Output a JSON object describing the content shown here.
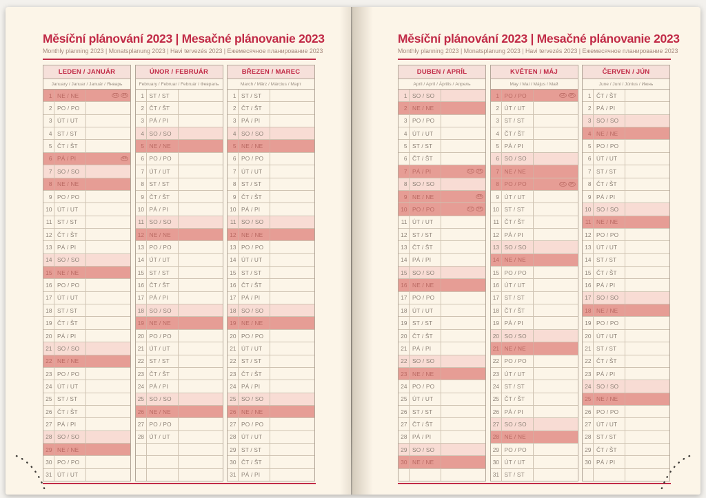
{
  "title": "Měsíční plánování 2023 | Mesačné plánovanie 2023",
  "subtitle": "Monthly planning 2023 | Monatsplanung 2023 | Havi tervezés 2023 | Ежемесячное планирование 2023",
  "colors": {
    "accent_red": "#c12b47",
    "page_cream": "#fcf5e8",
    "sunday_holiday_row": "#e69d95",
    "saturday_row": "#f8dcd4",
    "header_pink": "#f6e0da",
    "text_brown": "#8e8378"
  },
  "badge_labels": {
    "CZ": "CZ",
    "SK": "SK"
  },
  "row_fields": [
    "date",
    "day_abbrev_cs_sk",
    "highlight",
    "holiday_badges"
  ],
  "months": [
    {
      "page": 0,
      "name": "LEDEN / JANUÁR",
      "languages": "January / Januar / Január / Январь",
      "rows": [
        [
          "1",
          "NE / NE",
          "sun",
          "CZ,SK"
        ],
        [
          "2",
          "PO / PO",
          "",
          ""
        ],
        [
          "3",
          "ÚT / UT",
          "",
          ""
        ],
        [
          "4",
          "ST / ST",
          "",
          ""
        ],
        [
          "5",
          "ČT / ŠT",
          "",
          ""
        ],
        [
          "6",
          "PÁ / PI",
          "sun",
          "SK"
        ],
        [
          "7",
          "SO / SO",
          "sat",
          ""
        ],
        [
          "8",
          "NE / NE",
          "sun",
          ""
        ],
        [
          "9",
          "PO / PO",
          "",
          ""
        ],
        [
          "10",
          "ÚT / UT",
          "",
          ""
        ],
        [
          "11",
          "ST / ST",
          "",
          ""
        ],
        [
          "12",
          "ČT / ŠT",
          "",
          ""
        ],
        [
          "13",
          "PÁ / PI",
          "",
          ""
        ],
        [
          "14",
          "SO / SO",
          "sat",
          ""
        ],
        [
          "15",
          "NE / NE",
          "sun",
          ""
        ],
        [
          "16",
          "PO / PO",
          "",
          ""
        ],
        [
          "17",
          "ÚT / UT",
          "",
          ""
        ],
        [
          "18",
          "ST / ST",
          "",
          ""
        ],
        [
          "19",
          "ČT / ŠT",
          "",
          ""
        ],
        [
          "20",
          "PÁ / PI",
          "",
          ""
        ],
        [
          "21",
          "SO / SO",
          "sat",
          ""
        ],
        [
          "22",
          "NE / NE",
          "sun",
          ""
        ],
        [
          "23",
          "PO / PO",
          "",
          ""
        ],
        [
          "24",
          "ÚT / UT",
          "",
          ""
        ],
        [
          "25",
          "ST / ST",
          "",
          ""
        ],
        [
          "26",
          "ČT / ŠT",
          "",
          ""
        ],
        [
          "27",
          "PÁ / PI",
          "",
          ""
        ],
        [
          "28",
          "SO / SO",
          "sat",
          ""
        ],
        [
          "29",
          "NE / NE",
          "sun",
          ""
        ],
        [
          "30",
          "PO / PO",
          "",
          ""
        ],
        [
          "31",
          "ÚT / UT",
          "",
          ""
        ]
      ]
    },
    {
      "page": 0,
      "name": "ÚNOR / FEBRUÁR",
      "languages": "February / Februar / Február / Февраль",
      "rows": [
        [
          "1",
          "ST / ST",
          "",
          ""
        ],
        [
          "2",
          "ČT / ŠT",
          "",
          ""
        ],
        [
          "3",
          "PÁ / PI",
          "",
          ""
        ],
        [
          "4",
          "SO / SO",
          "sat",
          ""
        ],
        [
          "5",
          "NE / NE",
          "sun",
          ""
        ],
        [
          "6",
          "PO / PO",
          "",
          ""
        ],
        [
          "7",
          "ÚT / UT",
          "",
          ""
        ],
        [
          "8",
          "ST / ST",
          "",
          ""
        ],
        [
          "9",
          "ČT / ŠT",
          "",
          ""
        ],
        [
          "10",
          "PÁ / PI",
          "",
          ""
        ],
        [
          "11",
          "SO / SO",
          "sat",
          ""
        ],
        [
          "12",
          "NE / NE",
          "sun",
          ""
        ],
        [
          "13",
          "PO / PO",
          "",
          ""
        ],
        [
          "14",
          "ÚT / UT",
          "",
          ""
        ],
        [
          "15",
          "ST / ST",
          "",
          ""
        ],
        [
          "16",
          "ČT / ŠT",
          "",
          ""
        ],
        [
          "17",
          "PÁ / PI",
          "",
          ""
        ],
        [
          "18",
          "SO / SO",
          "sat",
          ""
        ],
        [
          "19",
          "NE / NE",
          "sun",
          ""
        ],
        [
          "20",
          "PO / PO",
          "",
          ""
        ],
        [
          "21",
          "ÚT / UT",
          "",
          ""
        ],
        [
          "22",
          "ST / ST",
          "",
          ""
        ],
        [
          "23",
          "ČT / ŠT",
          "",
          ""
        ],
        [
          "24",
          "PÁ / PI",
          "",
          ""
        ],
        [
          "25",
          "SO / SO",
          "sat",
          ""
        ],
        [
          "26",
          "NE / NE",
          "sun",
          ""
        ],
        [
          "27",
          "PO / PO",
          "",
          ""
        ],
        [
          "28",
          "ÚT / UT",
          "",
          ""
        ],
        [
          "",
          "",
          "",
          ""
        ],
        [
          "",
          "",
          "",
          ""
        ],
        [
          "",
          "",
          "",
          ""
        ]
      ]
    },
    {
      "page": 0,
      "name": "BŘEZEN / MAREC",
      "languages": "March / März / Március / Март",
      "rows": [
        [
          "1",
          "ST / ST",
          "",
          ""
        ],
        [
          "2",
          "ČT / ŠT",
          "",
          ""
        ],
        [
          "3",
          "PÁ / PI",
          "",
          ""
        ],
        [
          "4",
          "SO / SO",
          "sat",
          ""
        ],
        [
          "5",
          "NE / NE",
          "sun",
          ""
        ],
        [
          "6",
          "PO / PO",
          "",
          ""
        ],
        [
          "7",
          "ÚT / UT",
          "",
          ""
        ],
        [
          "8",
          "ST / ST",
          "",
          ""
        ],
        [
          "9",
          "ČT / ŠT",
          "",
          ""
        ],
        [
          "10",
          "PÁ / PI",
          "",
          ""
        ],
        [
          "11",
          "SO / SO",
          "sat",
          ""
        ],
        [
          "12",
          "NE / NE",
          "sun",
          ""
        ],
        [
          "13",
          "PO / PO",
          "",
          ""
        ],
        [
          "14",
          "ÚT / UT",
          "",
          ""
        ],
        [
          "15",
          "ST / ST",
          "",
          ""
        ],
        [
          "16",
          "ČT / ŠT",
          "",
          ""
        ],
        [
          "17",
          "PÁ / PI",
          "",
          ""
        ],
        [
          "18",
          "SO / SO",
          "sat",
          ""
        ],
        [
          "19",
          "NE / NE",
          "sun",
          ""
        ],
        [
          "20",
          "PO / PO",
          "",
          ""
        ],
        [
          "21",
          "ÚT / UT",
          "",
          ""
        ],
        [
          "22",
          "ST / ST",
          "",
          ""
        ],
        [
          "23",
          "ČT / ŠT",
          "",
          ""
        ],
        [
          "24",
          "PÁ / PI",
          "",
          ""
        ],
        [
          "25",
          "SO / SO",
          "sat",
          ""
        ],
        [
          "26",
          "NE / NE",
          "sun",
          ""
        ],
        [
          "27",
          "PO / PO",
          "",
          ""
        ],
        [
          "28",
          "ÚT / UT",
          "",
          ""
        ],
        [
          "29",
          "ST / ST",
          "",
          ""
        ],
        [
          "30",
          "ČT / ŠT",
          "",
          ""
        ],
        [
          "31",
          "PÁ / PI",
          "",
          ""
        ]
      ]
    },
    {
      "page": 1,
      "name": "DUBEN / APRÍL",
      "languages": "April / Apríl / Április / Апрель",
      "rows": [
        [
          "1",
          "SO / SO",
          "sat",
          ""
        ],
        [
          "2",
          "NE / NE",
          "sun",
          ""
        ],
        [
          "3",
          "PO / PO",
          "",
          ""
        ],
        [
          "4",
          "ÚT / UT",
          "",
          ""
        ],
        [
          "5",
          "ST / ST",
          "",
          ""
        ],
        [
          "6",
          "ČT / ŠT",
          "",
          ""
        ],
        [
          "7",
          "PÁ / PI",
          "sun",
          "CZ,SK"
        ],
        [
          "8",
          "SO / SO",
          "sat",
          ""
        ],
        [
          "9",
          "NE / NE",
          "sun",
          "SK"
        ],
        [
          "10",
          "PO / PO",
          "sun",
          "CZ,SK"
        ],
        [
          "11",
          "ÚT / UT",
          "",
          ""
        ],
        [
          "12",
          "ST / ST",
          "",
          ""
        ],
        [
          "13",
          "ČT / ŠT",
          "",
          ""
        ],
        [
          "14",
          "PÁ / PI",
          "",
          ""
        ],
        [
          "15",
          "SO / SO",
          "sat",
          ""
        ],
        [
          "16",
          "NE / NE",
          "sun",
          ""
        ],
        [
          "17",
          "PO / PO",
          "",
          ""
        ],
        [
          "18",
          "ÚT / UT",
          "",
          ""
        ],
        [
          "19",
          "ST / ST",
          "",
          ""
        ],
        [
          "20",
          "ČT / ŠT",
          "",
          ""
        ],
        [
          "21",
          "PÁ / PI",
          "",
          ""
        ],
        [
          "22",
          "SO / SO",
          "sat",
          ""
        ],
        [
          "23",
          "NE / NE",
          "sun",
          ""
        ],
        [
          "24",
          "PO / PO",
          "",
          ""
        ],
        [
          "25",
          "ÚT / UT",
          "",
          ""
        ],
        [
          "26",
          "ST / ST",
          "",
          ""
        ],
        [
          "27",
          "ČT / ŠT",
          "",
          ""
        ],
        [
          "28",
          "PÁ / PI",
          "",
          ""
        ],
        [
          "29",
          "SO / SO",
          "sat",
          ""
        ],
        [
          "30",
          "NE / NE",
          "sun",
          ""
        ],
        [
          "",
          "",
          "",
          ""
        ]
      ]
    },
    {
      "page": 1,
      "name": "KVĚTEN / MÁJ",
      "languages": "May / Mai / Május / Май",
      "rows": [
        [
          "1",
          "PO / PO",
          "sun",
          "CZ,SK"
        ],
        [
          "2",
          "ÚT / UT",
          "",
          ""
        ],
        [
          "3",
          "ST / ST",
          "",
          ""
        ],
        [
          "4",
          "ČT / ŠT",
          "",
          ""
        ],
        [
          "5",
          "PÁ / PI",
          "",
          ""
        ],
        [
          "6",
          "SO / SO",
          "sat",
          ""
        ],
        [
          "7",
          "NE / NE",
          "sun",
          ""
        ],
        [
          "8",
          "PO / PO",
          "sun",
          "CZ,SK"
        ],
        [
          "9",
          "ÚT / UT",
          "",
          ""
        ],
        [
          "10",
          "ST / ST",
          "",
          ""
        ],
        [
          "11",
          "ČT / ŠT",
          "",
          ""
        ],
        [
          "12",
          "PÁ / PI",
          "",
          ""
        ],
        [
          "13",
          "SO / SO",
          "sat",
          ""
        ],
        [
          "14",
          "NE / NE",
          "sun",
          ""
        ],
        [
          "15",
          "PO / PO",
          "",
          ""
        ],
        [
          "16",
          "ÚT / UT",
          "",
          ""
        ],
        [
          "17",
          "ST / ST",
          "",
          ""
        ],
        [
          "18",
          "ČT / ŠT",
          "",
          ""
        ],
        [
          "19",
          "PÁ / PI",
          "",
          ""
        ],
        [
          "20",
          "SO / SO",
          "sat",
          ""
        ],
        [
          "21",
          "NE / NE",
          "sun",
          ""
        ],
        [
          "22",
          "PO / PO",
          "",
          ""
        ],
        [
          "23",
          "ÚT / UT",
          "",
          ""
        ],
        [
          "24",
          "ST / ST",
          "",
          ""
        ],
        [
          "25",
          "ČT / ŠT",
          "",
          ""
        ],
        [
          "26",
          "PÁ / PI",
          "",
          ""
        ],
        [
          "27",
          "SO / SO",
          "sat",
          ""
        ],
        [
          "28",
          "NE / NE",
          "sun",
          ""
        ],
        [
          "29",
          "PO / PO",
          "",
          ""
        ],
        [
          "30",
          "ÚT / UT",
          "",
          ""
        ],
        [
          "31",
          "ST / ST",
          "",
          ""
        ]
      ]
    },
    {
      "page": 1,
      "name": "ČERVEN / JÚN",
      "languages": "June / Juni / Június / Июнь",
      "rows": [
        [
          "1",
          "ČT / ŠT",
          "",
          ""
        ],
        [
          "2",
          "PÁ / PI",
          "",
          ""
        ],
        [
          "3",
          "SO / SO",
          "sat",
          ""
        ],
        [
          "4",
          "NE / NE",
          "sun",
          ""
        ],
        [
          "5",
          "PO / PO",
          "",
          ""
        ],
        [
          "6",
          "ÚT / UT",
          "",
          ""
        ],
        [
          "7",
          "ST / ST",
          "",
          ""
        ],
        [
          "8",
          "ČT / ŠT",
          "",
          ""
        ],
        [
          "9",
          "PÁ / PI",
          "",
          ""
        ],
        [
          "10",
          "SO / SO",
          "sat",
          ""
        ],
        [
          "11",
          "NE / NE",
          "sun",
          ""
        ],
        [
          "12",
          "PO / PO",
          "",
          ""
        ],
        [
          "13",
          "ÚT / UT",
          "",
          ""
        ],
        [
          "14",
          "ST / ST",
          "",
          ""
        ],
        [
          "15",
          "ČT / ŠT",
          "",
          ""
        ],
        [
          "16",
          "PÁ / PI",
          "",
          ""
        ],
        [
          "17",
          "SO / SO",
          "sat",
          ""
        ],
        [
          "18",
          "NE / NE",
          "sun",
          ""
        ],
        [
          "19",
          "PO / PO",
          "",
          ""
        ],
        [
          "20",
          "ÚT / UT",
          "",
          ""
        ],
        [
          "21",
          "ST / ST",
          "",
          ""
        ],
        [
          "22",
          "ČT / ŠT",
          "",
          ""
        ],
        [
          "23",
          "PÁ / PI",
          "",
          ""
        ],
        [
          "24",
          "SO / SO",
          "sat",
          ""
        ],
        [
          "25",
          "NE / NE",
          "sun",
          ""
        ],
        [
          "26",
          "PO / PO",
          "",
          ""
        ],
        [
          "27",
          "ÚT / UT",
          "",
          ""
        ],
        [
          "28",
          "ST / ST",
          "",
          ""
        ],
        [
          "29",
          "ČT / ŠT",
          "",
          ""
        ],
        [
          "30",
          "PÁ / PI",
          "",
          ""
        ],
        [
          "",
          "",
          "",
          ""
        ]
      ]
    }
  ]
}
